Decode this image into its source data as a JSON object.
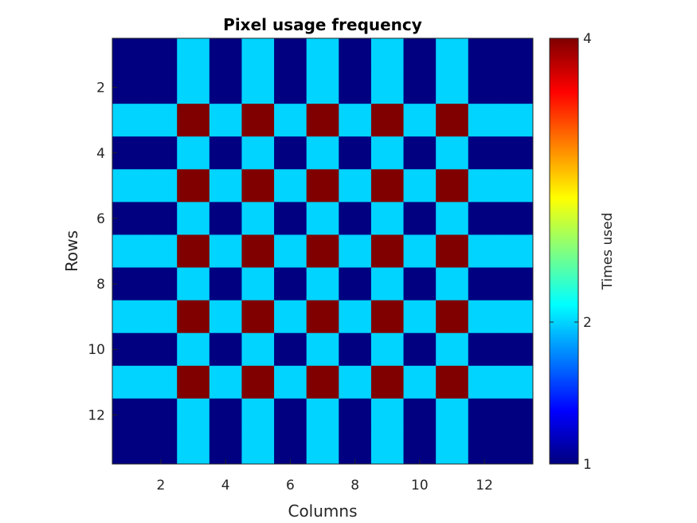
{
  "chart_data": {
    "type": "heatmap",
    "title": "Pixel usage frequency",
    "xlabel": "Columns",
    "ylabel": "Rows",
    "x_ticks": [
      2,
      4,
      6,
      8,
      10,
      12
    ],
    "y_ticks": [
      2,
      4,
      6,
      8,
      10,
      12
    ],
    "xlim": [
      0.5,
      13.5
    ],
    "ylim": [
      0.5,
      13.5
    ],
    "y_direction": "reversed",
    "colormap": "jet",
    "colorbar": {
      "label": "Times used",
      "ticks": [
        1,
        2,
        4
      ],
      "clim": [
        1,
        4
      ]
    },
    "matrix": [
      [
        1,
        1,
        2,
        1,
        2,
        1,
        2,
        1,
        2,
        1,
        2,
        1,
        1
      ],
      [
        1,
        1,
        2,
        1,
        2,
        1,
        2,
        1,
        2,
        1,
        2,
        1,
        1
      ],
      [
        2,
        2,
        4,
        2,
        4,
        2,
        4,
        2,
        4,
        2,
        4,
        2,
        2
      ],
      [
        1,
        1,
        2,
        1,
        2,
        1,
        2,
        1,
        2,
        1,
        2,
        1,
        1
      ],
      [
        2,
        2,
        4,
        2,
        4,
        2,
        4,
        2,
        4,
        2,
        4,
        2,
        2
      ],
      [
        1,
        1,
        2,
        1,
        2,
        1,
        2,
        1,
        2,
        1,
        2,
        1,
        1
      ],
      [
        2,
        2,
        4,
        2,
        4,
        2,
        4,
        2,
        4,
        2,
        4,
        2,
        2
      ],
      [
        1,
        1,
        2,
        1,
        2,
        1,
        2,
        1,
        2,
        1,
        2,
        1,
        1
      ],
      [
        2,
        2,
        4,
        2,
        4,
        2,
        4,
        2,
        4,
        2,
        4,
        2,
        2
      ],
      [
        1,
        1,
        2,
        1,
        2,
        1,
        2,
        1,
        2,
        1,
        2,
        1,
        1
      ],
      [
        2,
        2,
        4,
        2,
        4,
        2,
        4,
        2,
        4,
        2,
        4,
        2,
        2
      ],
      [
        1,
        1,
        2,
        1,
        2,
        1,
        2,
        1,
        2,
        1,
        2,
        1,
        1
      ],
      [
        1,
        1,
        2,
        1,
        2,
        1,
        2,
        1,
        2,
        1,
        2,
        1,
        1
      ]
    ],
    "grid": false
  }
}
